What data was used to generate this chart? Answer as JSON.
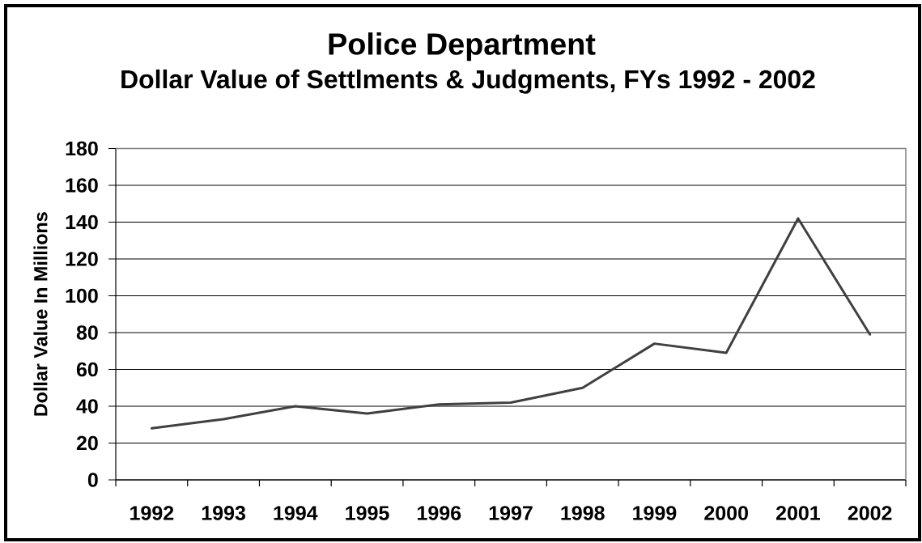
{
  "chart_data": {
    "type": "line",
    "title": "Police Department",
    "subtitle": "Dollar Value of Settlments & Judgments, FYs 1992 - 2002",
    "ylabel": "Dollar Value In Millions",
    "categories": [
      "1992",
      "1993",
      "1994",
      "1995",
      "1996",
      "1997",
      "1998",
      "1999",
      "2000",
      "2001",
      "2002"
    ],
    "values": [
      28,
      33,
      40,
      36,
      41,
      42,
      50,
      74,
      69,
      142,
      79
    ],
    "color": "#404040",
    "ylim": [
      0,
      180
    ],
    "yticks": [
      0,
      20,
      40,
      60,
      80,
      100,
      120,
      140,
      160,
      180
    ],
    "grid": "y"
  }
}
